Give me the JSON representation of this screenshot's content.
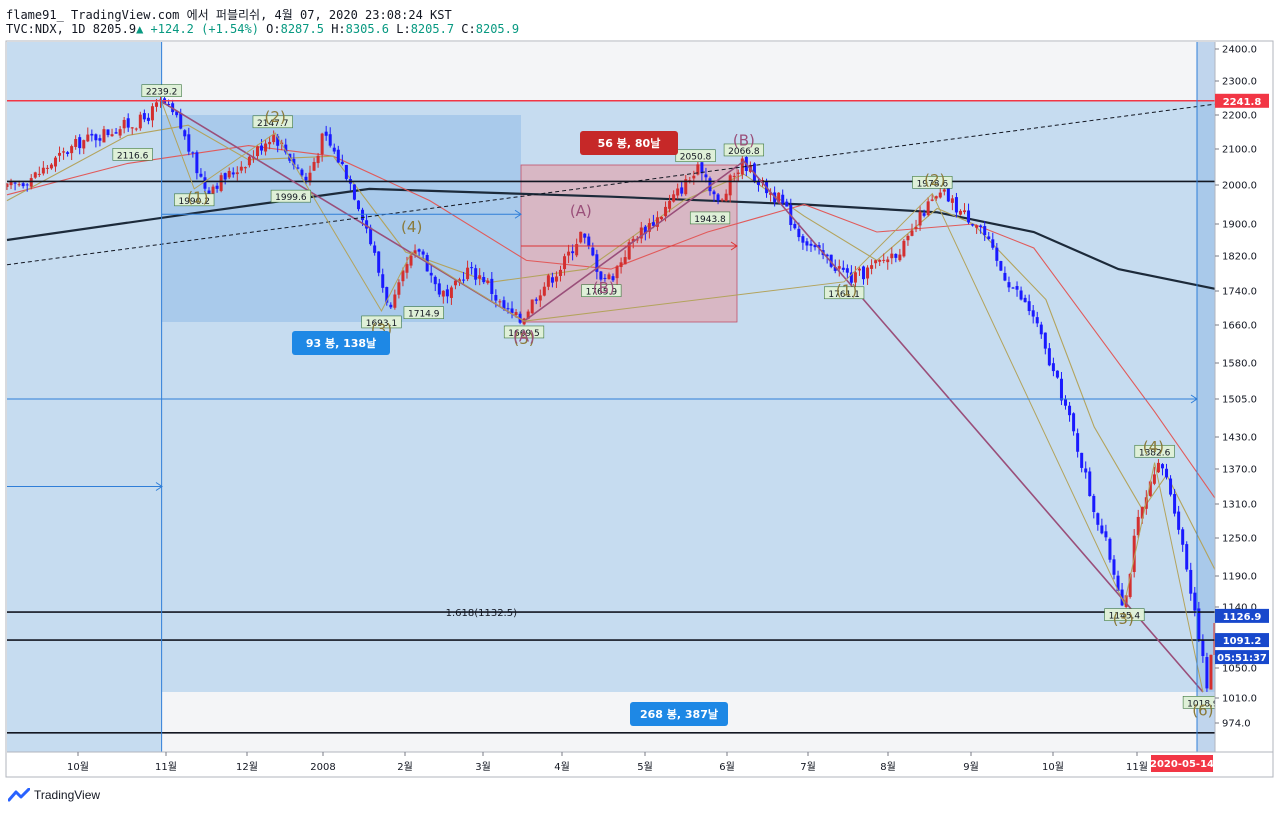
{
  "header": {
    "line1": "flame91_ TradingView.com 에서 퍼블리쉬, 4월 07, 2020 23:08:24 KST",
    "symbol": "TVC:NDX, 1D",
    "last": "8205.9",
    "change": "+124.2 (+1.54%)",
    "o_label": "O:",
    "o": "8287.5",
    "h_label": "H:",
    "h": "8305.6",
    "l_label": "L:",
    "l": "8205.7",
    "c_label": "C:",
    "c": "8205.9"
  },
  "brand": "TradingView",
  "colors": {
    "up": "#d32f2f",
    "down": "#1a1aff",
    "bg_blue": "#c6dcf0",
    "box_dark": "#a3c7ea",
    "box_red": "#d8b7c4",
    "sma_long": "#1c2a3a",
    "ma_red": "#e15a5a",
    "ma_olive": "#b3a35c",
    "wave": "#9a4f7a",
    "accent_red": "#f23645",
    "accent_blue": "#1848cc"
  },
  "chart_data": {
    "type": "candlestick",
    "title": "TVC:NDX, 1D",
    "ylim": [
      950,
      2420
    ],
    "y_ticks": [
      "2400.0",
      "2300.0",
      "2200.0",
      "2100.0",
      "2000.0",
      "1900.0",
      "1820.0",
      "1740.0",
      "1660.0",
      "1580.0",
      "1505.0",
      "1430.0",
      "1370.0",
      "1310.0",
      "1250.0",
      "1190.0",
      "1140.0",
      "1050.0",
      "1010.0",
      "974.0"
    ],
    "x_labels": [
      "10월",
      "11월",
      "12월",
      "2008",
      "2월",
      "3월",
      "4월",
      "5월",
      "6월",
      "7월",
      "8월",
      "9월",
      "10월",
      "11월"
    ],
    "price_path": [
      [
        0,
        1990
      ],
      [
        0.025,
        2030
      ],
      [
        0.06,
        2120
      ],
      [
        0.09,
        2160
      ],
      [
        0.113,
        2185
      ],
      [
        0.128,
        2239
      ],
      [
        0.142,
        2180
      ],
      [
        0.155,
        2060
      ],
      [
        0.165,
        1990
      ],
      [
        0.185,
        2030
      ],
      [
        0.205,
        2090
      ],
      [
        0.22,
        2147
      ],
      [
        0.24,
        2050
      ],
      [
        0.248,
        2010
      ],
      [
        0.262,
        2140
      ],
      [
        0.28,
        2040
      ],
      [
        0.295,
        1920
      ],
      [
        0.31,
        1760
      ],
      [
        0.318,
        1693
      ],
      [
        0.33,
        1790
      ],
      [
        0.342,
        1840
      ],
      [
        0.355,
        1750
      ],
      [
        0.365,
        1720
      ],
      [
        0.38,
        1790
      ],
      [
        0.395,
        1770
      ],
      [
        0.41,
        1700
      ],
      [
        0.425,
        1670
      ],
      [
        0.44,
        1740
      ],
      [
        0.46,
        1800
      ],
      [
        0.475,
        1877
      ],
      [
        0.492,
        1775
      ],
      [
        0.5,
        1770
      ],
      [
        0.52,
        1870
      ],
      [
        0.54,
        1920
      ],
      [
        0.56,
        2000
      ],
      [
        0.575,
        2050
      ],
      [
        0.59,
        1943
      ],
      [
        0.6,
        2020
      ],
      [
        0.61,
        2066
      ],
      [
        0.625,
        2000
      ],
      [
        0.64,
        1960
      ],
      [
        0.655,
        1880
      ],
      [
        0.67,
        1830
      ],
      [
        0.69,
        1790
      ],
      [
        0.7,
        1766
      ],
      [
        0.72,
        1800
      ],
      [
        0.745,
        1850
      ],
      [
        0.76,
        1940
      ],
      [
        0.775,
        1978
      ],
      [
        0.79,
        1930
      ],
      [
        0.805,
        1900
      ],
      [
        0.82,
        1800
      ],
      [
        0.835,
        1740
      ],
      [
        0.85,
        1680
      ],
      [
        0.86,
        1600
      ],
      [
        0.875,
        1500
      ],
      [
        0.885,
        1420
      ],
      [
        0.9,
        1300
      ],
      [
        0.913,
        1220
      ],
      [
        0.925,
        1140
      ],
      [
        0.935,
        1270
      ],
      [
        0.945,
        1330
      ],
      [
        0.955,
        1382
      ],
      [
        0.965,
        1320
      ],
      [
        0.975,
        1220
      ],
      [
        0.985,
        1120
      ],
      [
        0.99,
        1060
      ],
      [
        0.994,
        1018
      ],
      [
        1.0,
        1120
      ]
    ],
    "moving_averages": [
      {
        "name": "MA long",
        "color": "#1c2a3a",
        "points": [
          [
            0,
            1860
          ],
          [
            0.16,
            1930
          ],
          [
            0.3,
            1990
          ],
          [
            0.5,
            1970
          ],
          [
            0.66,
            1950
          ],
          [
            0.77,
            1930
          ],
          [
            0.85,
            1880
          ],
          [
            0.92,
            1790
          ],
          [
            1.0,
            1745
          ]
        ]
      },
      {
        "name": "MA mid",
        "color": "#e15a5a",
        "points": [
          [
            0,
            1975
          ],
          [
            0.1,
            2060
          ],
          [
            0.2,
            2110
          ],
          [
            0.27,
            2080
          ],
          [
            0.35,
            1960
          ],
          [
            0.43,
            1810
          ],
          [
            0.5,
            1790
          ],
          [
            0.58,
            1880
          ],
          [
            0.66,
            1950
          ],
          [
            0.72,
            1880
          ],
          [
            0.8,
            1900
          ],
          [
            0.85,
            1840
          ],
          [
            0.9,
            1650
          ],
          [
            0.95,
            1480
          ],
          [
            1.0,
            1320
          ]
        ]
      },
      {
        "name": "MA short",
        "color": "#b3a35c",
        "points": [
          [
            0,
            1960
          ],
          [
            0.1,
            2140
          ],
          [
            0.15,
            2170
          ],
          [
            0.2,
            2070
          ],
          [
            0.27,
            2080
          ],
          [
            0.33,
            1830
          ],
          [
            0.4,
            1760
          ],
          [
            0.48,
            1790
          ],
          [
            0.56,
            1960
          ],
          [
            0.61,
            2030
          ],
          [
            0.66,
            1920
          ],
          [
            0.72,
            1810
          ],
          [
            0.77,
            1940
          ],
          [
            0.8,
            1900
          ],
          [
            0.86,
            1720
          ],
          [
            0.9,
            1450
          ],
          [
            0.94,
            1300
          ],
          [
            0.96,
            1360
          ],
          [
            1.0,
            1200
          ]
        ]
      }
    ],
    "markers": [
      {
        "text": "2239.2",
        "t": 0.128,
        "p": 2239.2,
        "pos": "above"
      },
      {
        "text": "2116.6",
        "t": 0.104,
        "p": 2116.6,
        "pos": "below"
      },
      {
        "text": "1990.2",
        "t": 0.155,
        "p": 1990.2,
        "pos": "below"
      },
      {
        "text": "2147.7",
        "t": 0.22,
        "p": 2147.7,
        "pos": "above"
      },
      {
        "text": "1999.6",
        "t": 0.235,
        "p": 1999.6,
        "pos": "below"
      },
      {
        "text": "1693.1",
        "t": 0.31,
        "p": 1693.1,
        "pos": "below"
      },
      {
        "text": "1714.9",
        "t": 0.345,
        "p": 1714.9,
        "pos": "below"
      },
      {
        "text": "1669.5",
        "t": 0.428,
        "p": 1669.5,
        "pos": "below"
      },
      {
        "text": "1765.9",
        "t": 0.492,
        "p": 1765.9,
        "pos": "below"
      },
      {
        "text": "2050.8",
        "t": 0.57,
        "p": 2050.8,
        "pos": "above"
      },
      {
        "text": "1943.8",
        "t": 0.582,
        "p": 1943.8,
        "pos": "below"
      },
      {
        "text": "2066.8",
        "t": 0.61,
        "p": 2066.8,
        "pos": "above"
      },
      {
        "text": "1761.1",
        "t": 0.693,
        "p": 1761.1,
        "pos": "below"
      },
      {
        "text": "1978.6",
        "t": 0.766,
        "p": 1978.6,
        "pos": "above"
      },
      {
        "text": "1145.4",
        "t": 0.925,
        "p": 1145.4,
        "pos": "below"
      },
      {
        "text": "1382.6",
        "t": 0.95,
        "p": 1382.6,
        "pos": "above"
      },
      {
        "text": "1018.9",
        "t": 0.99,
        "p": 1018.9,
        "pos": "below"
      }
    ],
    "wave_labels": [
      {
        "text": "(1)",
        "t": 0.158,
        "p": 1955,
        "color": "#8a7a3a"
      },
      {
        "text": "(2)",
        "t": 0.222,
        "p": 2180,
        "color": "#8a7a3a"
      },
      {
        "text": "(3)",
        "t": 0.31,
        "p": 1640,
        "color": "#8a7a3a"
      },
      {
        "text": "(4)",
        "t": 0.335,
        "p": 1880,
        "color": "#8a7a3a"
      },
      {
        "text": "(5)",
        "t": 0.428,
        "p": 1620,
        "color": "#8a7a3a"
      },
      {
        "text": "(A)",
        "t": 0.428,
        "p": 1625,
        "color": "#9a4f7a"
      },
      {
        "text": "(A)",
        "t": 0.475,
        "p": 1920,
        "color": "#9a4f7a"
      },
      {
        "text": "(B)",
        "t": 0.494,
        "p": 1735,
        "color": "#9a4f7a"
      },
      {
        "text": "(B)",
        "t": 0.61,
        "p": 2110,
        "color": "#9a4f7a"
      },
      {
        "text": "(1)",
        "t": 0.695,
        "p": 1730,
        "color": "#8a7a3a"
      },
      {
        "text": "(2)",
        "t": 0.768,
        "p": 2000,
        "color": "#8a7a3a"
      },
      {
        "text": "(3)",
        "t": 0.924,
        "p": 1115,
        "color": "#8a7a3a"
      },
      {
        "text": "(4)",
        "t": 0.949,
        "p": 1402,
        "color": "#8a7a3a"
      },
      {
        "text": "(6)",
        "t": 0.99,
        "p": 985,
        "color": "#8a7a3a"
      }
    ],
    "range_labels": [
      "93 봉, 138날",
      "56 봉, 80날",
      "268 봉, 387날"
    ],
    "fib_label": "1.618(1132.5)",
    "price_tags": [
      {
        "text": "2241.8",
        "color": "#f23645",
        "p": 2241.8
      },
      {
        "text": "1126.9",
        "color": "#1848cc",
        "p": 1126.9
      },
      {
        "text": "1091.2",
        "color": "#1848cc",
        "p": 1091.2
      },
      {
        "text": "05:51:37",
        "color": "#1848cc",
        "p": 1061
      }
    ],
    "date_tag": "2020-05-14",
    "hlines": [
      {
        "p": 2241.8,
        "color": "#f23645"
      },
      {
        "p": 1132.5,
        "color": "#131722"
      },
      {
        "p": 1091.2,
        "color": "#131722"
      },
      {
        "p": 2010,
        "color": "#131722"
      },
      {
        "p": 960,
        "color": "#131722"
      }
    ]
  }
}
